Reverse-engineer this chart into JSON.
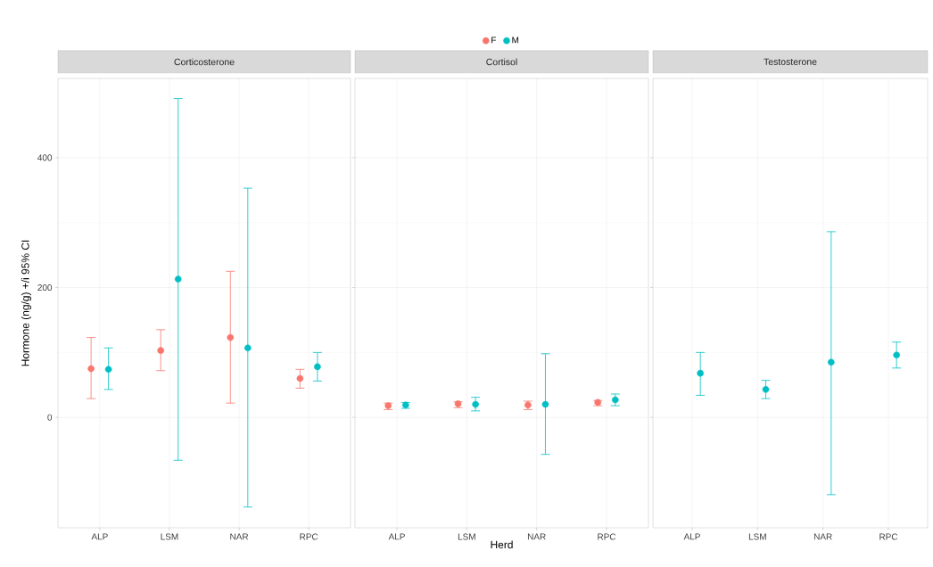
{
  "chart_data": [
    {
      "type": "scatter",
      "title": "Corticosterone",
      "ylabel": "Hormone (ng/g) +/i 95% CI",
      "categories": [
        "ALP",
        "LSM",
        "NAR",
        "RPC"
      ],
      "ylim": [
        -170,
        522
      ],
      "yticks": [
        0,
        200,
        400
      ],
      "grid": true,
      "marker": "circle",
      "tick_labels": true,
      "series": [
        {
          "color": "#f8766d",
          "values": [
            75,
            103,
            123,
            60
          ],
          "errors": [
            [
              29,
              123
            ],
            [
              72,
              135
            ],
            [
              22,
              225
            ],
            [
              45,
              74
            ]
          ]
        },
        {
          "color": "#00bfc4",
          "values": [
            74,
            213,
            107,
            78
          ],
          "errors": [
            [
              43,
              107
            ],
            [
              -66,
              491
            ],
            [
              -138,
              353
            ],
            [
              56,
              100
            ]
          ]
        }
      ]
    },
    {
      "type": "scatter",
      "title": "Cortisol",
      "xlabel": "Herd",
      "categories": [
        "ALP",
        "LSM",
        "NAR",
        "RPC"
      ],
      "ylim": [
        -170,
        522
      ],
      "yticks": [
        0,
        200,
        400
      ],
      "grid": true,
      "marker": "circle",
      "tick_labels": "x",
      "legend": "top",
      "series": [
        {
          "name": "F",
          "color": "#f8766d",
          "values": [
            18,
            21,
            19,
            23
          ],
          "errors": [
            [
              12,
              22
            ],
            [
              15,
              24
            ],
            [
              12,
              25
            ],
            [
              18,
              26
            ]
          ]
        },
        {
          "name": "M",
          "color": "#00bfc4",
          "values": [
            19,
            20,
            20,
            27
          ],
          "errors": [
            [
              14,
              23
            ],
            [
              10,
              31
            ],
            [
              -57,
              98
            ],
            [
              18,
              36
            ]
          ]
        }
      ]
    },
    {
      "type": "scatter",
      "title": "Testosterone",
      "categories": [
        "ALP",
        "LSM",
        "NAR",
        "RPC"
      ],
      "ylim": [
        -170,
        522
      ],
      "yticks": [
        0,
        200,
        400
      ],
      "grid": true,
      "marker": "circle",
      "tick_labels": "x",
      "series": [
        {
          "color": "#f8766d",
          "values": [
            null,
            null,
            null,
            null
          ],
          "errors": [
            null,
            null,
            null,
            null
          ]
        },
        {
          "color": "#00bfc4",
          "values": [
            68,
            43,
            85,
            96
          ],
          "errors": [
            [
              34,
              100
            ],
            [
              29,
              57
            ],
            [
              -119,
              286
            ],
            [
              76,
              116
            ]
          ]
        }
      ]
    }
  ]
}
